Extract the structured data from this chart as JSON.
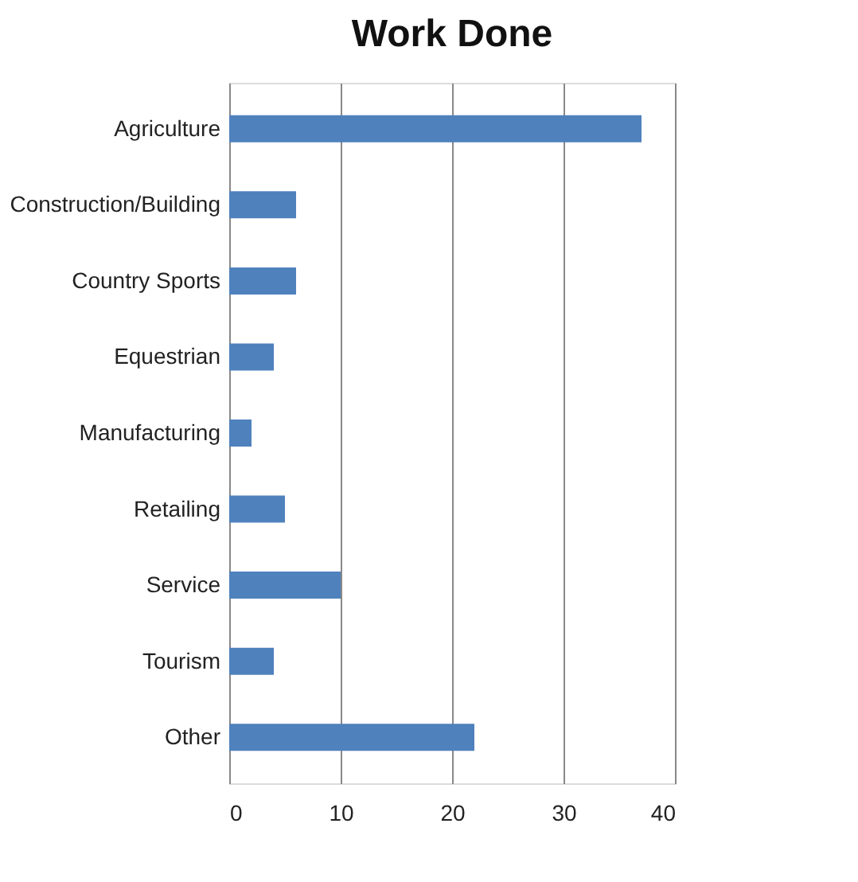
{
  "chart_data": {
    "type": "bar",
    "orientation": "horizontal",
    "title": "Work Done",
    "categories": [
      "Agriculture",
      "Construction/Building",
      "Country Sports",
      "Equestrian",
      "Manufacturing",
      "Retailing",
      "Service",
      "Tourism",
      "Other"
    ],
    "values": [
      37,
      6,
      6,
      4,
      2,
      5,
      10,
      4,
      22
    ],
    "color": "#4f81bd",
    "xlim": [
      0,
      40
    ],
    "xticks": [
      0,
      10,
      20,
      30,
      40
    ],
    "grid": "x"
  }
}
